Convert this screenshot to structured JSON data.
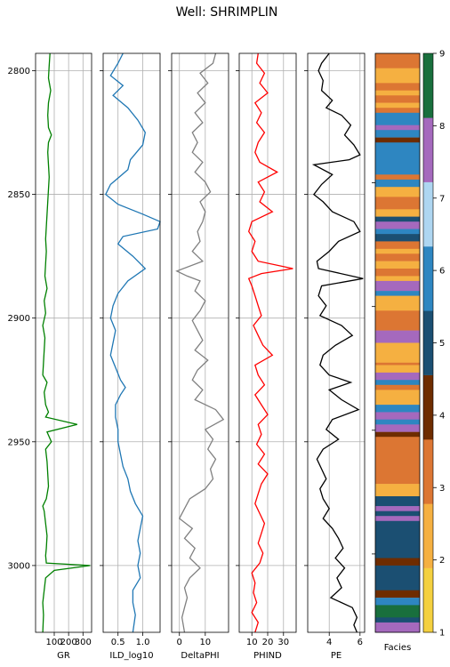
{
  "suptitle": "Well: SHRIMPLIN",
  "chart_data": [
    {
      "type": "line",
      "track": "GR",
      "xlabel": "GR",
      "xlim": [
        -30,
        360
      ],
      "xticks": [
        100,
        200,
        300
      ],
      "ylim": [
        3027,
        2793
      ],
      "yticks": [
        2800,
        2850,
        2900,
        2950,
        3000
      ],
      "grid": true,
      "color": "#008000",
      "depth": [
        2793,
        2798,
        2803,
        2808,
        2813,
        2818,
        2823,
        2826,
        2829,
        2833,
        2838,
        2843,
        2848,
        2853,
        2858,
        2863,
        2868,
        2873,
        2878,
        2883,
        2888,
        2893,
        2898,
        2903,
        2908,
        2913,
        2918,
        2923,
        2926,
        2930,
        2935,
        2938,
        2940,
        2943,
        2946,
        2950,
        2953,
        2958,
        2963,
        2968,
        2973,
        2976,
        2978,
        2983,
        2988,
        2993,
        2996,
        2999,
        3000,
        3002,
        3005,
        3010,
        3015,
        3020,
        3027
      ],
      "values": [
        70,
        65,
        60,
        75,
        60,
        55,
        60,
        80,
        60,
        55,
        60,
        65,
        60,
        55,
        50,
        45,
        40,
        45,
        40,
        35,
        50,
        30,
        40,
        20,
        35,
        30,
        25,
        20,
        50,
        30,
        40,
        60,
        40,
        260,
        50,
        80,
        40,
        50,
        55,
        60,
        45,
        20,
        30,
        40,
        50,
        45,
        40,
        45,
        350,
        100,
        40,
        30,
        20,
        25,
        20
      ]
    },
    {
      "type": "line",
      "track": "ILD_log10",
      "xlabel": "ILD_log10",
      "xlim": [
        0.2,
        1.35
      ],
      "xticks": [
        0.5,
        1.0
      ],
      "ylim": [
        3027,
        2793
      ],
      "yticks": [
        2800,
        2850,
        2900,
        2950,
        3000
      ],
      "grid": true,
      "color": "#1f77b4",
      "depth": [
        2793,
        2797,
        2802,
        2806,
        2810,
        2815,
        2820,
        2825,
        2830,
        2836,
        2840,
        2846,
        2850,
        2854,
        2858,
        2861,
        2864,
        2867,
        2870,
        2875,
        2880,
        2885,
        2890,
        2895,
        2900,
        2905,
        2910,
        2915,
        2920,
        2925,
        2928,
        2931,
        2935,
        2940,
        2945,
        2950,
        2955,
        2960,
        2965,
        2970,
        2975,
        2980,
        2985,
        2990,
        2995,
        3000,
        3005,
        3010,
        3015,
        3020,
        3027
      ],
      "values": [
        0.6,
        0.5,
        0.35,
        0.6,
        0.4,
        0.7,
        0.9,
        1.05,
        1.0,
        0.75,
        0.7,
        0.35,
        0.25,
        0.5,
        1.0,
        1.35,
        1.3,
        0.6,
        0.5,
        0.8,
        1.05,
        0.7,
        0.5,
        0.4,
        0.35,
        0.45,
        0.4,
        0.35,
        0.45,
        0.55,
        0.65,
        0.55,
        0.45,
        0.45,
        0.5,
        0.5,
        0.55,
        0.6,
        0.7,
        0.75,
        0.85,
        1.0,
        0.95,
        0.9,
        0.95,
        0.9,
        0.95,
        0.8,
        0.8,
        0.85,
        0.8
      ]
    },
    {
      "type": "line",
      "track": "DeltaPHI",
      "xlabel": "DeltaPHI",
      "xlim": [
        -3,
        19
      ],
      "xticks": [
        0,
        10
      ],
      "ylim": [
        3027,
        2793
      ],
      "yticks": [
        2800,
        2850,
        2900,
        2950,
        3000
      ],
      "grid": true,
      "color": "#808080",
      "depth": [
        2793,
        2797,
        2801,
        2805,
        2809,
        2813,
        2817,
        2821,
        2825,
        2829,
        2833,
        2837,
        2841,
        2845,
        2849,
        2853,
        2857,
        2861,
        2865,
        2869,
        2873,
        2877,
        2881,
        2883,
        2885,
        2889,
        2893,
        2897,
        2901,
        2905,
        2909,
        2913,
        2917,
        2921,
        2925,
        2929,
        2933,
        2937,
        2941,
        2945,
        2949,
        2953,
        2957,
        2961,
        2965,
        2969,
        2973,
        2977,
        2981,
        2985,
        2989,
        2993,
        2997,
        3001,
        3005,
        3009,
        3013,
        3017,
        3021,
        3027
      ],
      "values": [
        14,
        13,
        8,
        11,
        7,
        10,
        6,
        9,
        5,
        7,
        5,
        9,
        6,
        10,
        12,
        8,
        10,
        9,
        7,
        8,
        5,
        9,
        -1,
        3,
        8,
        6,
        10,
        8,
        5,
        7,
        9,
        6,
        11,
        7,
        5,
        9,
        6,
        14,
        17,
        10,
        13,
        11,
        14,
        12,
        13,
        10,
        4,
        2,
        0,
        5,
        2,
        6,
        4,
        8,
        4,
        2,
        3,
        2,
        1,
        2
      ]
    },
    {
      "type": "line",
      "track": "PHIND",
      "xlabel": "PHIND",
      "xlim": [
        2,
        38
      ],
      "xticks": [
        10,
        20,
        30
      ],
      "ylim": [
        3027,
        2793
      ],
      "yticks": [
        2800,
        2850,
        2900,
        2950,
        3000
      ],
      "grid": true,
      "color": "#ff0000",
      "depth": [
        2793,
        2797,
        2801,
        2805,
        2809,
        2813,
        2817,
        2821,
        2825,
        2829,
        2833,
        2837,
        2841,
        2845,
        2849,
        2853,
        2857,
        2861,
        2865,
        2869,
        2873,
        2877,
        2880,
        2882,
        2884,
        2887,
        2891,
        2895,
        2899,
        2903,
        2907,
        2911,
        2915,
        2919,
        2923,
        2927,
        2931,
        2935,
        2939,
        2943,
        2947,
        2951,
        2955,
        2959,
        2963,
        2967,
        2971,
        2975,
        2979,
        2983,
        2987,
        2991,
        2995,
        2999,
        3003,
        3007,
        3011,
        3015,
        3019,
        3023,
        3027
      ],
      "values": [
        14,
        13,
        18,
        15,
        20,
        12,
        16,
        13,
        18,
        14,
        12,
        15,
        26,
        14,
        18,
        15,
        23,
        10,
        8,
        12,
        10,
        14,
        36,
        16,
        8,
        10,
        12,
        14,
        16,
        11,
        14,
        17,
        23,
        12,
        14,
        18,
        12,
        16,
        20,
        14,
        16,
        13,
        18,
        14,
        20,
        16,
        14,
        12,
        15,
        18,
        16,
        14,
        17,
        15,
        10,
        12,
        11,
        13,
        10,
        14,
        12
      ]
    },
    {
      "type": "line",
      "track": "PE",
      "xlabel": "PE",
      "xlim": [
        2.6,
        6.3
      ],
      "xticks": [
        4,
        6
      ],
      "ylim": [
        3027,
        2793
      ],
      "yticks": [
        2800,
        2850,
        2900,
        2950,
        3000
      ],
      "grid": true,
      "color": "#000000",
      "depth": [
        2793,
        2797,
        2800,
        2804,
        2808,
        2812,
        2815,
        2818,
        2822,
        2826,
        2830,
        2834,
        2836,
        2838,
        2842,
        2846,
        2850,
        2853,
        2857,
        2861,
        2865,
        2869,
        2873,
        2877,
        2880,
        2884,
        2887,
        2891,
        2895,
        2899,
        2903,
        2907,
        2911,
        2915,
        2919,
        2923,
        2926,
        2929,
        2933,
        2937,
        2941,
        2945,
        2949,
        2953,
        2957,
        2961,
        2965,
        2969,
        2973,
        2977,
        2981,
        2985,
        2989,
        2993,
        2997,
        3001,
        3005,
        3009,
        3013,
        3017,
        3021,
        3024,
        3027
      ],
      "values": [
        4.0,
        3.5,
        3.3,
        3.6,
        3.5,
        4.2,
        3.8,
        4.8,
        5.4,
        5.0,
        5.6,
        6.0,
        5.3,
        3.0,
        4.2,
        3.5,
        3.0,
        3.6,
        4.2,
        5.6,
        6.0,
        4.6,
        4.0,
        3.2,
        3.3,
        6.2,
        3.5,
        3.3,
        3.8,
        3.4,
        4.8,
        5.5,
        4.4,
        3.6,
        3.4,
        4.0,
        5.4,
        4.0,
        4.8,
        5.9,
        4.2,
        3.8,
        4.6,
        3.6,
        3.2,
        3.5,
        3.8,
        3.4,
        3.6,
        4.0,
        3.6,
        4.2,
        4.6,
        4.9,
        4.4,
        5.0,
        4.5,
        4.8,
        4.1,
        5.5,
        5.8,
        5.6,
        5.8
      ]
    },
    {
      "type": "heatmap",
      "track": "Facies",
      "xlabel": "Facies",
      "ylim": [
        3027,
        2793
      ],
      "colorbar": {
        "min": 1,
        "max": 9,
        "ticks": [
          "1",
          "2",
          "3",
          "4",
          "5",
          "6",
          "7",
          "8",
          "9"
        ],
        "colors": [
          "#F4D03F",
          "#F5B041",
          "#DC7633",
          "#6E2C00",
          "#1B4F72",
          "#2E86C1",
          "#AED6F1",
          "#A569BD",
          "#196F3D"
        ]
      },
      "intervals": [
        [
          2793,
          2799,
          3
        ],
        [
          2799,
          2805,
          2
        ],
        [
          2805,
          2808,
          3
        ],
        [
          2808,
          2810,
          2
        ],
        [
          2810,
          2813,
          3
        ],
        [
          2813,
          2815,
          2
        ],
        [
          2815,
          2817,
          3
        ],
        [
          2817,
          2822,
          6
        ],
        [
          2822,
          2824,
          8
        ],
        [
          2824,
          2827,
          6
        ],
        [
          2827,
          2829,
          4
        ],
        [
          2829,
          2842,
          6
        ],
        [
          2842,
          2844,
          3
        ],
        [
          2844,
          2847,
          6
        ],
        [
          2847,
          2851,
          2
        ],
        [
          2851,
          2856,
          3
        ],
        [
          2856,
          2859,
          2
        ],
        [
          2859,
          2861,
          5
        ],
        [
          2861,
          2864,
          8
        ],
        [
          2864,
          2866,
          6
        ],
        [
          2866,
          2869,
          5
        ],
        [
          2869,
          2872,
          3
        ],
        [
          2872,
          2874,
          2
        ],
        [
          2874,
          2877,
          3
        ],
        [
          2877,
          2880,
          2
        ],
        [
          2880,
          2883,
          3
        ],
        [
          2883,
          2885,
          2
        ],
        [
          2885,
          2889,
          8
        ],
        [
          2889,
          2891,
          6
        ],
        [
          2891,
          2897,
          2
        ],
        [
          2897,
          2905,
          3
        ],
        [
          2905,
          2910,
          8
        ],
        [
          2910,
          2918,
          2
        ],
        [
          2918,
          2919,
          3
        ],
        [
          2919,
          2922,
          2
        ],
        [
          2922,
          2925,
          8
        ],
        [
          2925,
          2927,
          6
        ],
        [
          2927,
          2929,
          3
        ],
        [
          2929,
          2935,
          2
        ],
        [
          2935,
          2938,
          6
        ],
        [
          2938,
          2941,
          8
        ],
        [
          2941,
          2943,
          6
        ],
        [
          2943,
          2946,
          8
        ],
        [
          2946,
          2948,
          4
        ],
        [
          2948,
          2967,
          3
        ],
        [
          2967,
          2972,
          2
        ],
        [
          2972,
          2976,
          5
        ],
        [
          2976,
          2978,
          8
        ],
        [
          2978,
          2980,
          5
        ],
        [
          2980,
          2982,
          8
        ],
        [
          2982,
          2997,
          5
        ],
        [
          2997,
          3000,
          4
        ],
        [
          3000,
          3010,
          5
        ],
        [
          3010,
          3013,
          4
        ],
        [
          3013,
          3016,
          6
        ],
        [
          3016,
          3021,
          9
        ],
        [
          3021,
          3023,
          5
        ],
        [
          3023,
          3027,
          8
        ]
      ]
    }
  ]
}
